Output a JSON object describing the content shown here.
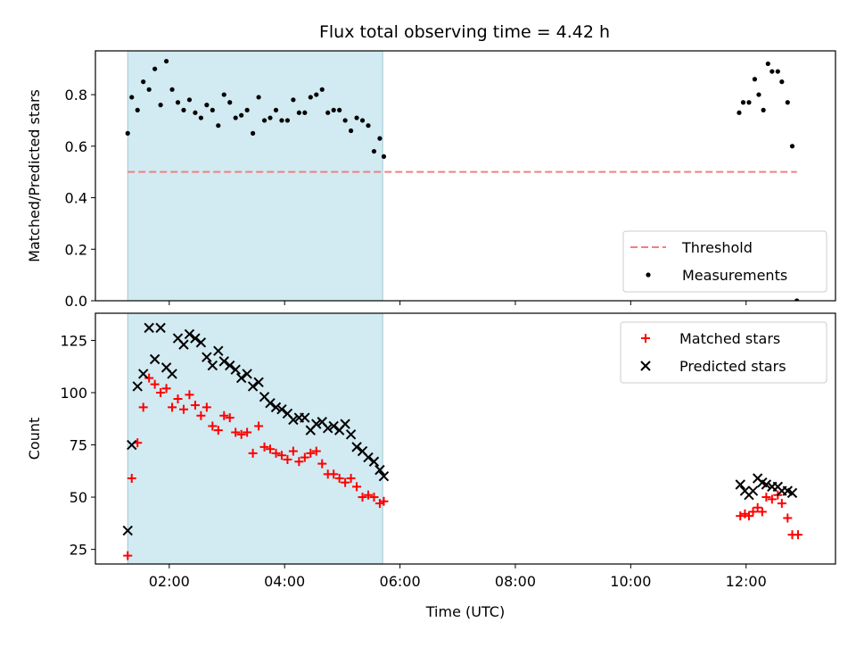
{
  "title": "Flux total observing time = 4.42 h",
  "colors": {
    "shade": "#add8e6",
    "threshold": "#f08080",
    "measurements": "#000000",
    "matched": "#ff0000",
    "predicted": "#000000"
  },
  "chart_data": [
    {
      "type": "scatter",
      "ylabel": "Matched/Predicted stars",
      "ylim": [
        0,
        0.97
      ],
      "xlim": [
        0.72,
        13.55
      ],
      "yticks": [
        0.0,
        0.2,
        0.4,
        0.6,
        0.8
      ],
      "ytick_labels": [
        "0.0",
        "0.2",
        "0.4",
        "0.6",
        "0.8"
      ],
      "xticks": [
        2,
        4,
        6,
        8,
        10,
        12
      ],
      "shaded_interval": [
        1.28,
        5.7
      ],
      "legend_position": "lower right",
      "legend": [
        {
          "label": "Threshold",
          "marker": "dashed-line"
        },
        {
          "label": "Measurements",
          "marker": "dot"
        }
      ],
      "threshold": {
        "name": "Threshold",
        "y": 0.5,
        "x": [
          1.28,
          12.88
        ]
      },
      "series": [
        {
          "name": "Measurements",
          "x": [
            1.28,
            1.35,
            1.45,
            1.55,
            1.65,
            1.75,
            1.85,
            1.95,
            2.05,
            2.15,
            2.25,
            2.35,
            2.45,
            2.55,
            2.65,
            2.75,
            2.85,
            2.95,
            3.05,
            3.15,
            3.25,
            3.35,
            3.45,
            3.55,
            3.65,
            3.75,
            3.85,
            3.95,
            4.05,
            4.15,
            4.25,
            4.35,
            4.45,
            4.55,
            4.65,
            4.75,
            4.85,
            4.95,
            5.05,
            5.15,
            5.25,
            5.35,
            5.45,
            5.55,
            5.65,
            5.72,
            11.88,
            11.95,
            12.05,
            12.15,
            12.22,
            12.3,
            12.38,
            12.45,
            12.55,
            12.62,
            12.72,
            12.8,
            12.88
          ],
          "y": [
            0.65,
            0.79,
            0.74,
            0.85,
            0.82,
            0.9,
            0.76,
            0.93,
            0.82,
            0.77,
            0.74,
            0.78,
            0.73,
            0.71,
            0.76,
            0.74,
            0.68,
            0.8,
            0.77,
            0.71,
            0.72,
            0.74,
            0.65,
            0.79,
            0.7,
            0.71,
            0.74,
            0.7,
            0.7,
            0.78,
            0.73,
            0.73,
            0.79,
            0.8,
            0.82,
            0.73,
            0.74,
            0.74,
            0.7,
            0.66,
            0.71,
            0.7,
            0.68,
            0.58,
            0.63,
            0.56,
            0.73,
            0.77,
            0.77,
            0.86,
            0.8,
            0.74,
            0.92,
            0.89,
            0.89,
            0.85,
            0.77,
            0.6,
            0.0
          ]
        }
      ]
    },
    {
      "type": "scatter",
      "xlabel": "Time (UTC)",
      "ylabel": "Count",
      "ylim": [
        18,
        138
      ],
      "xlim": [
        0.72,
        13.55
      ],
      "yticks": [
        25,
        50,
        75,
        100,
        125
      ],
      "xticks": [
        2,
        4,
        6,
        8,
        10,
        12
      ],
      "xtick_labels": [
        "02:00",
        "04:00",
        "06:00",
        "08:00",
        "10:00",
        "12:00"
      ],
      "shaded_interval": [
        1.28,
        5.7
      ],
      "legend_position": "upper right",
      "legend": [
        {
          "label": "Matched stars",
          "marker": "plus"
        },
        {
          "label": "Predicted stars",
          "marker": "x"
        }
      ],
      "series": [
        {
          "name": "Matched stars",
          "marker": "plus",
          "x": [
            1.28,
            1.35,
            1.45,
            1.55,
            1.65,
            1.75,
            1.85,
            1.95,
            2.05,
            2.15,
            2.25,
            2.35,
            2.45,
            2.55,
            2.65,
            2.75,
            2.85,
            2.95,
            3.05,
            3.15,
            3.25,
            3.35,
            3.45,
            3.55,
            3.65,
            3.75,
            3.85,
            3.95,
            4.05,
            4.15,
            4.25,
            4.35,
            4.45,
            4.55,
            4.65,
            4.75,
            4.85,
            4.95,
            5.05,
            5.15,
            5.25,
            5.35,
            5.45,
            5.55,
            5.65,
            5.72,
            11.9,
            11.98,
            12.05,
            12.12,
            12.2,
            12.28,
            12.35,
            12.45,
            12.55,
            12.62,
            12.72,
            12.8,
            12.9
          ],
          "y": [
            22,
            59,
            76,
            93,
            107,
            104,
            100,
            102,
            93,
            97,
            92,
            99,
            94,
            89,
            93,
            84,
            82,
            89,
            88,
            81,
            80,
            81,
            71,
            84,
            74,
            73,
            71,
            70,
            68,
            72,
            67,
            69,
            71,
            72,
            66,
            61,
            61,
            59,
            57,
            59,
            55,
            50,
            51,
            50,
            47,
            48,
            41,
            42,
            41,
            43,
            45,
            43,
            50,
            49,
            51,
            47,
            40,
            32,
            32
          ]
        },
        {
          "name": "Predicted stars",
          "marker": "x",
          "x": [
            1.28,
            1.35,
            1.45,
            1.55,
            1.65,
            1.75,
            1.85,
            1.95,
            2.05,
            2.15,
            2.25,
            2.35,
            2.45,
            2.55,
            2.65,
            2.75,
            2.85,
            2.95,
            3.05,
            3.15,
            3.25,
            3.35,
            3.45,
            3.55,
            3.65,
            3.75,
            3.85,
            3.95,
            4.05,
            4.15,
            4.25,
            4.35,
            4.45,
            4.55,
            4.65,
            4.75,
            4.85,
            4.95,
            5.05,
            5.15,
            5.25,
            5.35,
            5.45,
            5.55,
            5.65,
            5.72,
            11.9,
            11.98,
            12.05,
            12.12,
            12.2,
            12.28,
            12.35,
            12.45,
            12.55,
            12.62,
            12.72,
            12.8
          ],
          "y": [
            34,
            75,
            103,
            109,
            131,
            116,
            131,
            112,
            109,
            126,
            123,
            128,
            126,
            124,
            117,
            113,
            120,
            115,
            113,
            111,
            107,
            109,
            103,
            105,
            98,
            95,
            93,
            92,
            90,
            87,
            88,
            88,
            82,
            85,
            86,
            83,
            84,
            82,
            85,
            80,
            74,
            72,
            69,
            67,
            63,
            60,
            56,
            53,
            51,
            53,
            59,
            57,
            56,
            55,
            55,
            53,
            53,
            52
          ]
        }
      ]
    }
  ]
}
